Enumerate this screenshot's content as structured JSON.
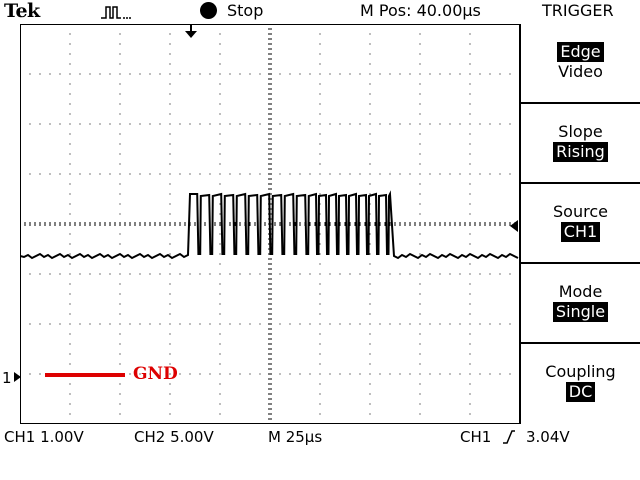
{
  "header": {
    "brand": "Tek",
    "acquire_icon": "pulse-waveform-icon",
    "run_state_icon": "filled-circle-icon",
    "run_state": "Stop",
    "horizontal_position": "M Pos: 40.00µs",
    "menu_title": "TRIGGER"
  },
  "menu": {
    "type": {
      "title": "",
      "selected": "Edge",
      "other": "Video"
    },
    "slope": {
      "title": "Slope",
      "value": "Rising"
    },
    "source": {
      "title": "Source",
      "value": "CH1"
    },
    "mode": {
      "title": "Mode",
      "value": "Single"
    },
    "coupling": {
      "title": "Coupling",
      "value": "DC"
    }
  },
  "display": {
    "ch1_ground_marker": "1",
    "gnd_label": "GND",
    "gnd_color": "#dd0000",
    "trace_color": "#000000",
    "grid_divisions": {
      "horizontal": 10,
      "vertical": 8
    },
    "trigger_position_icon": "down-arrow-marker-icon",
    "trigger_level_icon": "left-arrow-marker-icon"
  },
  "status": {
    "ch1_scale": "CH1  1.00V",
    "ch2_scale": "CH2  5.00V",
    "timebase": "M 25µs",
    "trigger_source": "CH1",
    "trigger_slope_icon": "rising-edge-icon",
    "trigger_level": "3.04V"
  }
}
